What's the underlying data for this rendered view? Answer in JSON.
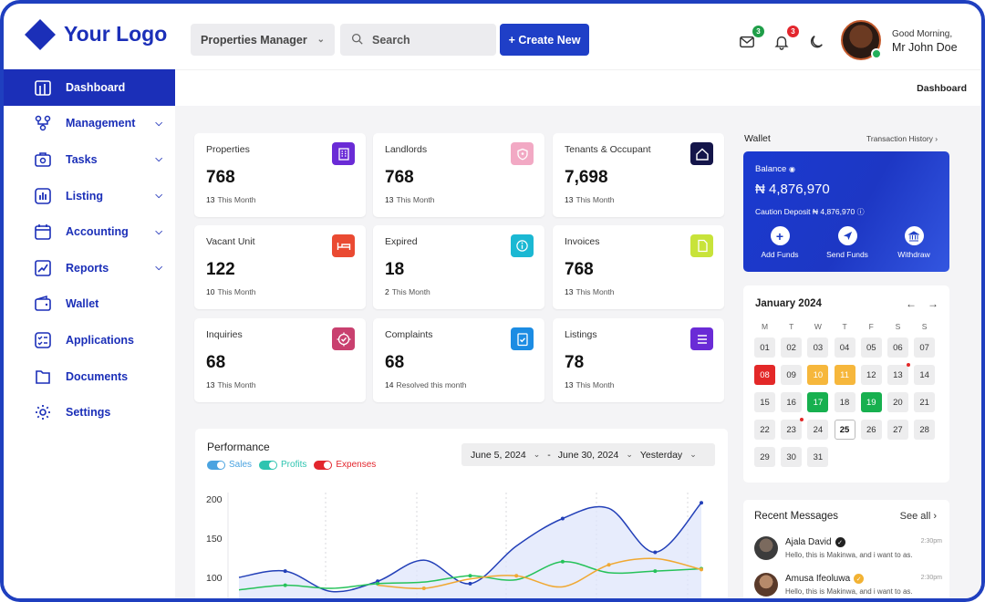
{
  "header": {
    "logo_text": "Your Logo",
    "property_select": "Properties Manager",
    "search_placeholder": "Search",
    "create_label": "+ Create New",
    "mail_count": "3",
    "notif_count": "3",
    "greeting": "Good Morning,",
    "user_name": "Mr John Doe"
  },
  "sidebar": {
    "items": [
      {
        "label": "Dashboard",
        "icon": "dashboard-icon"
      },
      {
        "label": "Management",
        "icon": "management-icon"
      },
      {
        "label": "Tasks",
        "icon": "tasks-icon"
      },
      {
        "label": "Listing",
        "icon": "listing-icon"
      },
      {
        "label": "Accounting",
        "icon": "accounting-icon"
      },
      {
        "label": "Reports",
        "icon": "reports-icon"
      },
      {
        "label": "Wallet",
        "icon": "wallet-icon"
      },
      {
        "label": "Applications",
        "icon": "applications-icon"
      },
      {
        "label": "Documents",
        "icon": "documents-icon"
      },
      {
        "label": "Settings",
        "icon": "settings-icon"
      }
    ]
  },
  "breadcrumb": "Dashboard",
  "stats": [
    {
      "title": "Properties",
      "value": "768",
      "count": "13",
      "note": "This Month",
      "color": "#6a2bd6"
    },
    {
      "title": "Landlords",
      "value": "768",
      "count": "13",
      "note": "This Month",
      "color": "#f2a9c4"
    },
    {
      "title": "Tenants & Occupant",
      "value": "7,698",
      "count": "13",
      "note": "This Month",
      "color": "#14154a"
    },
    {
      "title": "Vacant Unit",
      "value": "122",
      "count": "10",
      "note": "This Month",
      "color": "#ea4a32"
    },
    {
      "title": "Expired",
      "value": "18",
      "count": "2",
      "note": "This Month",
      "color": "#1bb8d3"
    },
    {
      "title": "Invoices",
      "value": "768",
      "count": "13",
      "note": "This Month",
      "color": "#c8e33a"
    },
    {
      "title": "Inquiries",
      "value": "68",
      "count": "13",
      "note": "This Month",
      "color": "#c9406f"
    },
    {
      "title": "Complaints",
      "value": "68",
      "count": "14",
      "note": "Resolved this month",
      "color": "#1c8ce3"
    },
    {
      "title": "Listings",
      "value": "78",
      "count": "13",
      "note": "This Month",
      "color": "#6a2bd6"
    }
  ],
  "performance": {
    "title": "Performance",
    "legend": [
      {
        "label": "Sales",
        "color": "#4aa3e0"
      },
      {
        "label": "Profits",
        "color": "#2ec4b0"
      },
      {
        "label": "Expenses",
        "color": "#e3262d"
      }
    ],
    "date_from": "June 5, 2024",
    "date_sep": "-",
    "date_to": "June 30, 2024",
    "period": "Yesterday"
  },
  "chart_data": {
    "type": "line",
    "yticks": [
      "200",
      "150",
      "100"
    ],
    "ylim": [
      80,
      200
    ],
    "series": [
      {
        "name": "Sales",
        "color": "#2340b8",
        "values": [
          100,
          108,
          82,
          95,
          122,
          92,
          140,
          175,
          188,
          132,
          195
        ]
      },
      {
        "name": "Profits",
        "color": "#26c25a",
        "values": [
          84,
          90,
          86,
          92,
          94,
          102,
          97,
          120,
          106,
          108,
          111
        ]
      },
      {
        "name": "Expenses",
        "color": "#f0a832",
        "values": [
          null,
          null,
          null,
          90,
          86,
          98,
          102,
          88,
          116,
          124,
          110
        ]
      }
    ]
  },
  "wallet": {
    "label": "Wallet",
    "tx_history": "Transaction History",
    "balance_label": "Balance",
    "balance": "₦ 4,876,970",
    "caution_label": "Caution Deposit",
    "caution_value": "₦ 4,876,970",
    "actions": [
      "Add Funds",
      "Send Funds",
      "Withdraw"
    ]
  },
  "calendar": {
    "title": "January 2024",
    "dow": [
      "M",
      "T",
      "W",
      "T",
      "F",
      "S",
      "S"
    ],
    "days": [
      "01",
      "02",
      "03",
      "04",
      "05",
      "06",
      "07",
      "08",
      "09",
      "10",
      "11",
      "12",
      "13",
      "14",
      "15",
      "16",
      "17",
      "18",
      "19",
      "20",
      "21",
      "22",
      "23",
      "24",
      "25",
      "26",
      "27",
      "28",
      "29",
      "30",
      "31"
    ],
    "highlights": {
      "08": "#e32828",
      "10": "#f6b73c",
      "11": "#f6b73c",
      "17": "#17b04f",
      "19": "#17b04f"
    },
    "today": "25",
    "dots": [
      "13",
      "23"
    ]
  },
  "messages": {
    "title": "Recent Messages",
    "see_all": "See all",
    "items": [
      {
        "name": "Ajala David",
        "text": "Hello, this is Makinwa, and i want to as...",
        "time": "2:30pm"
      },
      {
        "name": "Amusa Ifeoluwa",
        "text": "Hello, this is Makinwa, and i want to as...",
        "time": "2:30pm"
      }
    ]
  }
}
